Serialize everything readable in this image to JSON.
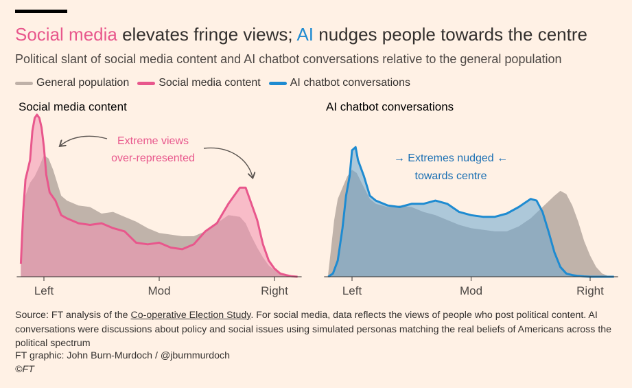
{
  "title": {
    "part1": "Social media",
    "part2": " elevates fringe views; ",
    "part3": "AI",
    "part4": " nudges people towards the centre"
  },
  "subtitle": "Political slant of social media content and AI chatbot conversations relative to the general population",
  "legend": [
    {
      "label": "General population",
      "color": "#bfb1a8"
    },
    {
      "label": "Social media content",
      "color": "#e8578c"
    },
    {
      "label": "AI chatbot conversations",
      "color": "#1e8bd1"
    }
  ],
  "colors": {
    "population_fill": "#b5a8a0",
    "social_line": "#e8578c",
    "social_fill": "#f28fb1",
    "ai_line": "#1e8bd1",
    "ai_fill": "#6aa6cf",
    "accent_social_text": "#e8578c",
    "accent_ai_text": "#1a6fb3"
  },
  "panels": [
    {
      "title": "Social media content"
    },
    {
      "title": "AI chatbot conversations"
    }
  ],
  "annotations": {
    "social_line1": "Extreme views",
    "social_line2": "over-represented",
    "ai_line1": "→ Extremes nudged ←",
    "ai_line2": "towards centre"
  },
  "chart_data": [
    {
      "type": "area",
      "title": "Social media content",
      "xlabel": "",
      "ylabel": "",
      "x_ticks": [
        {
          "label": "Left",
          "x": -1
        },
        {
          "label": "Mod",
          "x": 0
        },
        {
          "label": "Right",
          "x": 1
        }
      ],
      "xlim": [
        -1.2,
        1.2
      ],
      "ylim": [
        0,
        1
      ],
      "series": [
        {
          "name": "General population",
          "x": [
            -1.2,
            -1.18,
            -1.16,
            -1.12,
            -1.08,
            -1.04,
            -1.0,
            -0.96,
            -0.92,
            -0.85,
            -0.8,
            -0.7,
            -0.6,
            -0.5,
            -0.4,
            -0.3,
            -0.2,
            -0.1,
            0.0,
            0.1,
            0.2,
            0.3,
            0.4,
            0.5,
            0.6,
            0.7,
            0.75,
            0.8,
            0.85,
            0.9,
            0.95,
            1.0,
            1.05,
            1.1,
            1.15,
            1.2
          ],
          "values": [
            0.12,
            0.3,
            0.5,
            0.58,
            0.62,
            0.68,
            0.75,
            0.73,
            0.66,
            0.5,
            0.47,
            0.44,
            0.43,
            0.39,
            0.4,
            0.37,
            0.34,
            0.3,
            0.27,
            0.26,
            0.25,
            0.25,
            0.28,
            0.33,
            0.38,
            0.37,
            0.33,
            0.25,
            0.18,
            0.12,
            0.07,
            0.04,
            0.02,
            0.01,
            0.005,
            0.0
          ]
        },
        {
          "name": "Social media content",
          "x": [
            -1.2,
            -1.18,
            -1.16,
            -1.14,
            -1.12,
            -1.1,
            -1.08,
            -1.06,
            -1.04,
            -1.02,
            -1.0,
            -0.98,
            -0.95,
            -0.9,
            -0.85,
            -0.8,
            -0.7,
            -0.6,
            -0.5,
            -0.4,
            -0.3,
            -0.2,
            -0.1,
            0.0,
            0.1,
            0.2,
            0.3,
            0.4,
            0.5,
            0.6,
            0.7,
            0.75,
            0.8,
            0.85,
            0.9,
            0.95,
            1.0,
            1.05,
            1.1,
            1.15,
            1.2
          ],
          "values": [
            0.08,
            0.4,
            0.6,
            0.66,
            0.72,
            0.9,
            0.98,
            1.0,
            0.98,
            0.92,
            0.8,
            0.63,
            0.52,
            0.47,
            0.38,
            0.36,
            0.33,
            0.32,
            0.33,
            0.3,
            0.28,
            0.21,
            0.2,
            0.21,
            0.18,
            0.17,
            0.2,
            0.28,
            0.33,
            0.45,
            0.55,
            0.55,
            0.45,
            0.35,
            0.2,
            0.1,
            0.05,
            0.02,
            0.01,
            0.003,
            0.0
          ]
        }
      ]
    },
    {
      "type": "area",
      "title": "AI chatbot conversations",
      "xlabel": "",
      "ylabel": "",
      "x_ticks": [
        {
          "label": "Left",
          "x": -1
        },
        {
          "label": "Mod",
          "x": 0
        },
        {
          "label": "Right",
          "x": 1
        }
      ],
      "xlim": [
        -1.2,
        1.2
      ],
      "ylim": [
        0,
        1
      ],
      "series": [
        {
          "name": "General population",
          "x": [
            -1.2,
            -1.18,
            -1.15,
            -1.12,
            -1.08,
            -1.04,
            -1.0,
            -0.96,
            -0.92,
            -0.85,
            -0.8,
            -0.7,
            -0.6,
            -0.5,
            -0.4,
            -0.3,
            -0.2,
            -0.1,
            0.0,
            0.1,
            0.2,
            0.3,
            0.4,
            0.5,
            0.6,
            0.7,
            0.75,
            0.8,
            0.85,
            0.9,
            0.95,
            1.0,
            1.05,
            1.1,
            1.15,
            1.2
          ],
          "values": [
            0.02,
            0.15,
            0.35,
            0.48,
            0.55,
            0.62,
            0.66,
            0.64,
            0.58,
            0.48,
            0.45,
            0.43,
            0.44,
            0.43,
            0.4,
            0.38,
            0.35,
            0.32,
            0.3,
            0.29,
            0.28,
            0.28,
            0.31,
            0.36,
            0.43,
            0.5,
            0.53,
            0.51,
            0.44,
            0.34,
            0.22,
            0.13,
            0.06,
            0.02,
            0.005,
            0.0
          ]
        },
        {
          "name": "AI chatbot conversations",
          "x": [
            -1.2,
            -1.16,
            -1.12,
            -1.08,
            -1.05,
            -1.02,
            -1.0,
            -0.97,
            -0.95,
            -0.9,
            -0.85,
            -0.8,
            -0.7,
            -0.6,
            -0.5,
            -0.4,
            -0.3,
            -0.2,
            -0.1,
            0.0,
            0.1,
            0.2,
            0.3,
            0.4,
            0.5,
            0.55,
            0.6,
            0.65,
            0.7,
            0.75,
            0.8,
            0.85,
            0.9,
            0.95,
            1.0,
            1.1,
            1.2
          ],
          "values": [
            0.0,
            0.02,
            0.1,
            0.3,
            0.5,
            0.62,
            0.78,
            0.8,
            0.72,
            0.62,
            0.5,
            0.47,
            0.44,
            0.43,
            0.45,
            0.45,
            0.47,
            0.45,
            0.4,
            0.38,
            0.37,
            0.37,
            0.39,
            0.43,
            0.48,
            0.47,
            0.4,
            0.28,
            0.15,
            0.06,
            0.02,
            0.01,
            0.005,
            0.002,
            0.0,
            0.0,
            0.0
          ]
        }
      ]
    }
  ]
}
